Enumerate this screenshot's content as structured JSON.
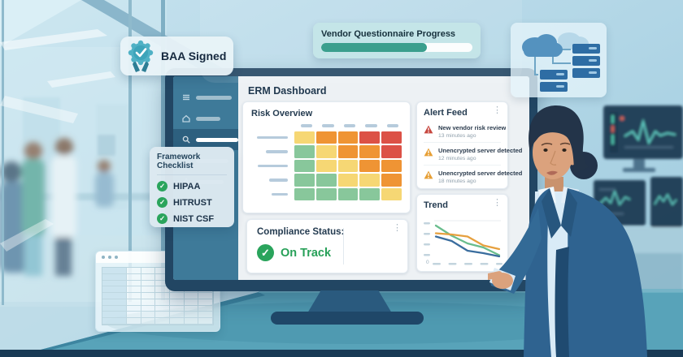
{
  "icons": {
    "kebab": "⋮",
    "check": "✓"
  },
  "colors": {
    "progress_teal": "#3a9f8d",
    "badge_teal": "#4fb1c5",
    "check_green": "#2aa45c",
    "status_green": "#27a058",
    "alert_critical": "#c7473f",
    "alert_warning": "#e79f35"
  },
  "scene": {
    "baa_badge": {
      "label": "BAA Signed"
    },
    "vendor_progress": {
      "label": "Vendor Questionnaire Progress",
      "percent": 70
    },
    "framework_checklist": {
      "title": "Framework Checklist",
      "items": [
        "HIPAA",
        "HITRUST",
        "NIST CSF"
      ]
    }
  },
  "dashboard": {
    "title": "ERM Dashboard",
    "risk_overview": {
      "title": "Risk Overview"
    },
    "alert_feed": {
      "title": "Alert Feed",
      "alerts": [
        {
          "title": "New vendor risk review",
          "time": "13 minutes ago",
          "severity": "critical"
        },
        {
          "title": "Unencrypted server detected",
          "time": "12 minutes ago",
          "severity": "warning"
        },
        {
          "title": "Unencrypted server detected",
          "time": "18 minutes ago",
          "severity": "warning"
        }
      ]
    },
    "compliance": {
      "label": "Compliance Status:",
      "status": "On Track"
    },
    "trend": {
      "title": "Trend",
      "y_zero_label": "0"
    }
  },
  "chart_data": [
    {
      "type": "heatmap",
      "title": "Risk Overview",
      "rows": 5,
      "cols": 5,
      "cells": [
        [
          "yellow",
          "orange",
          "orange",
          "red",
          "red"
        ],
        [
          "green",
          "yellow",
          "orange",
          "orange",
          "red"
        ],
        [
          "green",
          "yellow",
          "yellow",
          "orange",
          "orange"
        ],
        [
          "green",
          "green",
          "yellow",
          "yellow",
          "orange"
        ],
        [
          "green",
          "green",
          "green",
          "green",
          "yellow"
        ]
      ],
      "palette": {
        "green": "#88c79b",
        "yellow": "#f6d774",
        "orange": "#ef9434",
        "red": "#dc5146"
      },
      "note": "row and column labels are blank placeholder dashes"
    },
    {
      "type": "line",
      "title": "Trend",
      "x": [
        1,
        2,
        3,
        4,
        5
      ],
      "series": [
        {
          "name": "green",
          "color": "#69bd8d",
          "values": [
            84,
            59,
            40,
            30,
            11
          ]
        },
        {
          "name": "orange",
          "color": "#e6a03e",
          "values": [
            65,
            62,
            57,
            35,
            26
          ]
        },
        {
          "name": "blue",
          "color": "#3a6d9e",
          "values": [
            57,
            46,
            22,
            16,
            8
          ]
        }
      ],
      "ylim": [
        0,
        100
      ],
      "note": "axis tick labels are blank placeholder dashes; only 0 is shown"
    }
  ]
}
